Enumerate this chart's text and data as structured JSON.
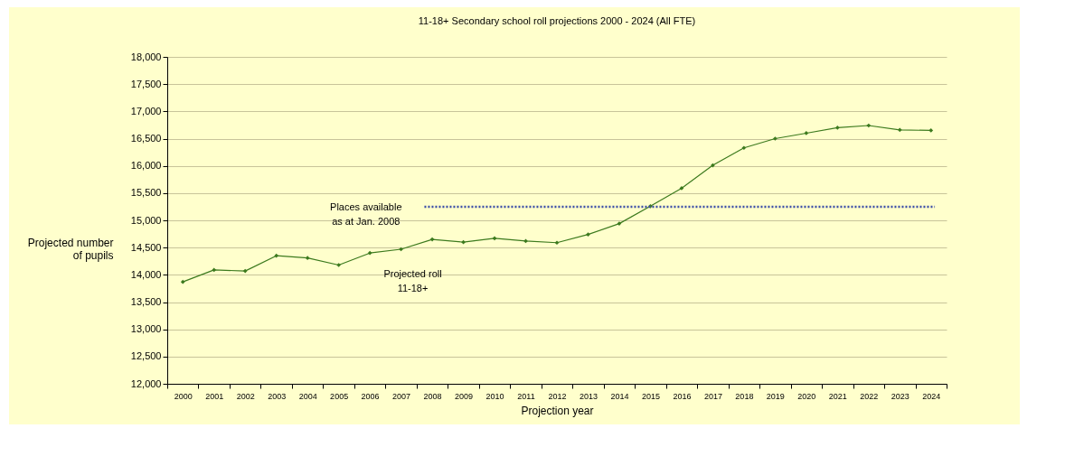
{
  "chart_data": {
    "type": "line",
    "title": "11-18+ Secondary school roll projections 2000 - 2024 (All FTE)",
    "xlabel": "Projection year",
    "ylabel": "Projected number\nof pupils",
    "categories": [
      "2000",
      "2001",
      "2002",
      "2003",
      "2004",
      "2005",
      "2006",
      "2007",
      "2008",
      "2009",
      "2010",
      "2011",
      "2012",
      "2013",
      "2014",
      "2015",
      "2016",
      "2017",
      "2018",
      "2019",
      "2020",
      "2021",
      "2022",
      "2023",
      "2024"
    ],
    "series": [
      {
        "color": "#3c7a1e",
        "values": [
          13870,
          14090,
          14070,
          14350,
          14310,
          14180,
          14400,
          14470,
          14650,
          14600,
          14670,
          14620,
          14590,
          14740,
          14940,
          15260,
          15590,
          16010,
          16330,
          16500,
          16600,
          16700,
          16740,
          16660,
          16650
        ]
      }
    ],
    "ylim": [
      12000,
      18000
    ],
    "yticks": [
      {
        "value": 12000,
        "label": "12,000"
      },
      {
        "value": 12500,
        "label": "12,500"
      },
      {
        "value": 13000,
        "label": "13,000"
      },
      {
        "value": 13500,
        "label": "13,500"
      },
      {
        "value": 14000,
        "label": "14,000"
      },
      {
        "value": 14500,
        "label": "14,500"
      },
      {
        "value": 15000,
        "label": "15,000"
      },
      {
        "value": 15500,
        "label": "15,500"
      },
      {
        "value": 16000,
        "label": "16,000"
      },
      {
        "value": 16500,
        "label": "16,500"
      },
      {
        "value": 17000,
        "label": "17,000"
      },
      {
        "value": 17500,
        "label": "17,500"
      },
      {
        "value": 18000,
        "label": "18,000"
      }
    ],
    "ref_lines": [
      {
        "axis": "y",
        "value": 15250,
        "label": "Places available\nas at Jan. 2008",
        "color": "#3d4fa8",
        "line_style": "dotted"
      }
    ],
    "annotations": [
      "Projected roll\n11-18+"
    ],
    "grid": "y",
    "marker": "diamond",
    "line_style": "solid"
  }
}
